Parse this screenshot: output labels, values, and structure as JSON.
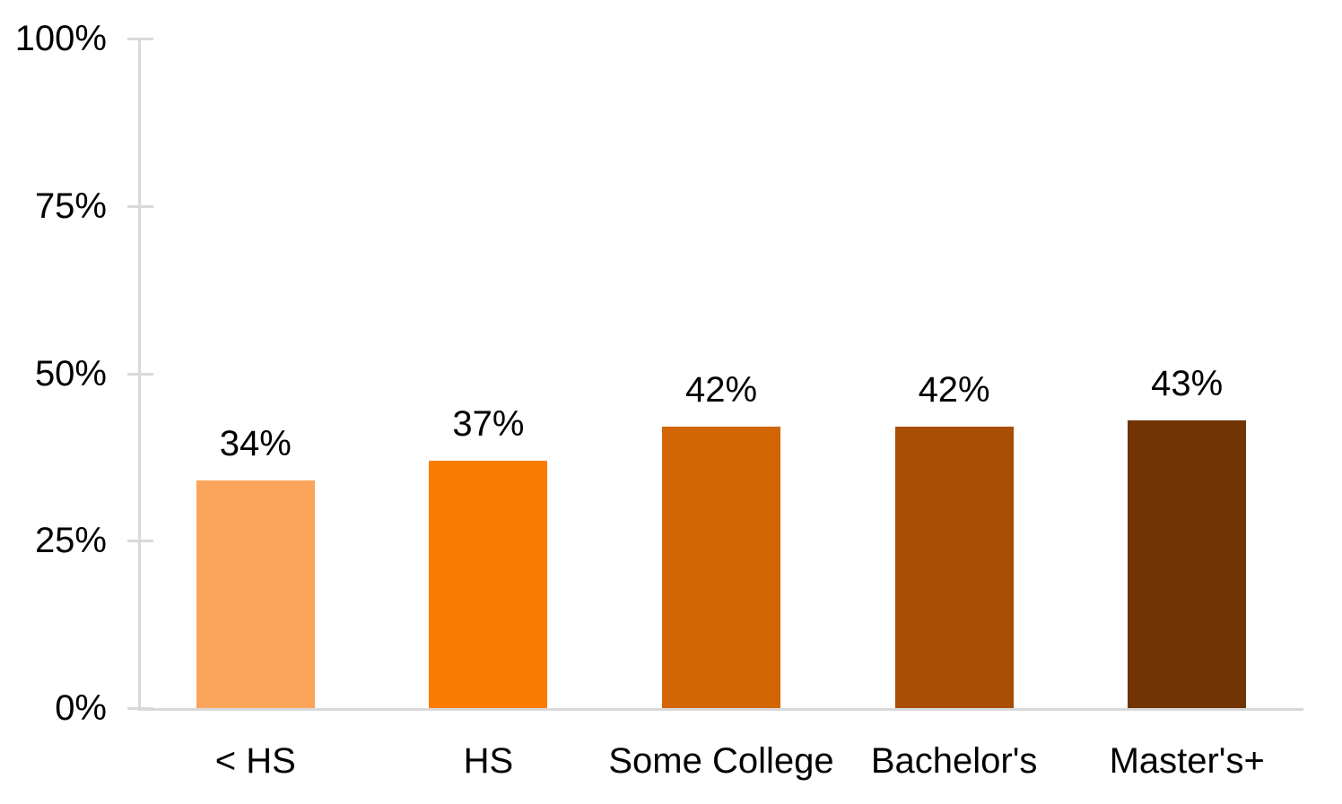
{
  "chart_data": {
    "type": "bar",
    "categories": [
      "< HS",
      "HS",
      "Some College",
      "Bachelor's",
      "Master's+"
    ],
    "values": [
      34,
      37,
      42,
      42,
      43
    ],
    "data_labels": [
      "34%",
      "37%",
      "42%",
      "42%",
      "43%"
    ],
    "bar_colors": [
      "#FBA55C",
      "#FB7C00",
      "#D26604",
      "#A84D04",
      "#713404"
    ],
    "ylim": [
      0,
      100
    ],
    "ytick_values": [
      0,
      25,
      50,
      75,
      100
    ],
    "ytick_labels": [
      "0%",
      "25%",
      "50%",
      "75%",
      "100%"
    ],
    "axis_color": "#D9D9D9",
    "text_color": "#000000",
    "grid": "off",
    "legend": "none"
  }
}
